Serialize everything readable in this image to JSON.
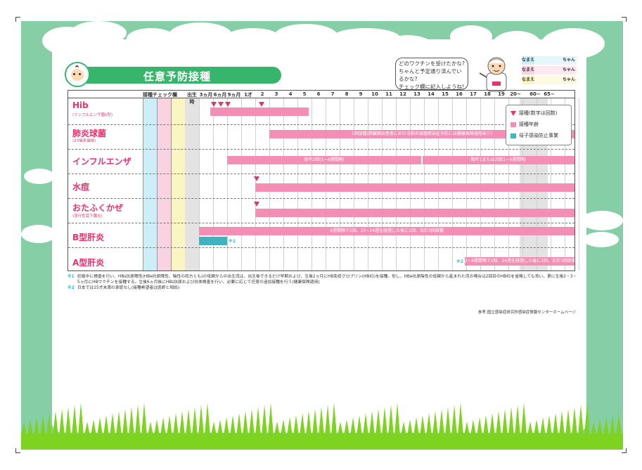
{
  "title": "任意予防接種",
  "bubble": {
    "lines": [
      "どのワクチンを受けたかな?",
      "ちゃんと予定通り済んでいるかな?",
      "チェック欄に記入しようね!"
    ]
  },
  "nametags": [
    {
      "label": "なまえ",
      "suffix": "ちゃん",
      "color": "#cdeef6"
    },
    {
      "label": "なまえ",
      "suffix": "ちゃん",
      "color": "#fad3e3"
    },
    {
      "label": "なまえ",
      "suffix": "ちゃん",
      "color": "#fbf5c4"
    }
  ],
  "header": {
    "check_label": "接種チェック欄",
    "ages": [
      "出生時",
      "3ヵ月",
      "6ヵ月",
      "9ヵ月",
      "1才",
      "2",
      "3",
      "4",
      "5",
      "6",
      "7",
      "8",
      "9",
      "10",
      "11",
      "12",
      "13",
      "14",
      "15",
      "16",
      "17",
      "18",
      "19",
      "20~",
      "60~",
      "65~"
    ]
  },
  "legend": {
    "dose": "接種(数字は回数)",
    "age": "接種年齢",
    "mother": "母子感染防止事業"
  },
  "vaccines": [
    {
      "name": "Hib",
      "sub": "(インフルエンザ菌b型)"
    },
    {
      "name": "肺炎球菌",
      "sub": "(23価多価体)"
    },
    {
      "name": "インフルエンザ",
      "sub": ""
    },
    {
      "name": "水痘",
      "sub": ""
    },
    {
      "name": "おたふくかぜ",
      "sub": "(流行性耳下腺炎)"
    },
    {
      "name": "B型肝炎",
      "sub": ""
    },
    {
      "name": "A型肝炎",
      "sub": ""
    }
  ],
  "bar_texts": {
    "pneumo": "1回接種(脾臓摘出患者における肺炎球菌感染症予防には健康保険適用あり)",
    "flu_a": "毎年2回(1~4週間隔)",
    "flu_b": "毎年1または2回(1~4週間隔)",
    "hepb": "4週間隔で2回、20~24週を経過した後に1回、合計3回接種",
    "hepb_note": "※1",
    "hepa_note": "※2",
    "hepa": "2~4週間隔で2回、24週を経過した後に1回、合計3回接種"
  },
  "notes": [
    {
      "mark": "※1",
      "text": "妊娠中に検査を行い、HBs抗原陽性(HBe抗原陽性、陰性の両方とも)の母親からの出生児は、出生後できるだけ早期および、生後2ヵ月にHB免疫グロブリン(HBIG)を接種。但し、HBe抗原陰性の母親から産まれた児の場合は2回目のHBIGを省略しても良い。更に生後2・3・5ヵ月にHBワクチンを接種する。生後6ヵ月後にHBs抗原および抗体検査を行い、必要に応じて任意の追加接種を行う(健康保険適用)"
    },
    {
      "mark": "※2",
      "text": "日本では15才未満の承認なし(接種希望者は医師と相談)"
    }
  ],
  "reference": "参考:国立感染症研究所感染症情報センターホームページ",
  "colors": {
    "sky": "#86cfa6",
    "green": "#38b56c",
    "pink": "#f38fb4",
    "red": "#e6336b",
    "teal": "#3fb4c1",
    "check1": "#cdeef6",
    "check2": "#fad3e3",
    "check3": "#fbf5c4"
  }
}
